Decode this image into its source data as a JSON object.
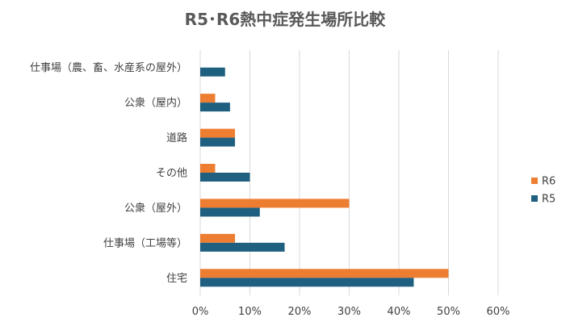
{
  "chart_data": {
    "type": "bar",
    "orientation": "horizontal",
    "title": "R5･R6熱中症発生場所比較",
    "categories": [
      "仕事場（農、畜、水産系の屋外）",
      "公衆（屋内）",
      "道路",
      "その他",
      "公衆（屋外）",
      "仕事場（工場等）",
      "住宅"
    ],
    "series": [
      {
        "name": "R6",
        "color": "#ED7D31",
        "values": [
          0,
          3,
          7,
          3,
          30,
          7,
          50
        ]
      },
      {
        "name": "R5",
        "color": "#1F5F7F",
        "values": [
          5,
          6,
          7,
          10,
          12,
          17,
          43
        ]
      }
    ],
    "xlim": [
      0,
      60
    ],
    "xticks": [
      "0%",
      "10%",
      "20%",
      "30%",
      "40%",
      "50%",
      "60%"
    ],
    "xlabel": "",
    "ylabel": "",
    "grid": true,
    "legend": {
      "position": "right",
      "entries": [
        "R6",
        "R5"
      ]
    }
  }
}
